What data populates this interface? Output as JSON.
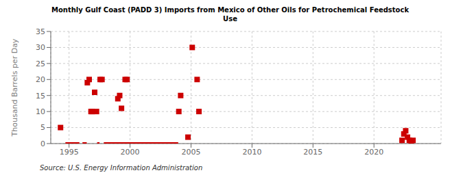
{
  "chart_data": {
    "type": "scatter",
    "title": "Monthly Gulf Coast (PADD 3) Imports from Mexico of Other Oils for Petrochemical Feedstock\nUse",
    "y_label": "Thousand Barrels per Day",
    "annotation": "Source: U.S. Energy Information Administration",
    "color": "#cc0000",
    "marker": "square",
    "grid": true,
    "xlim": [
      1993.5,
      2025.5
    ],
    "ylim": [
      0,
      35
    ],
    "xticks": [
      1995,
      2000,
      2005,
      2010,
      2015,
      2020
    ],
    "yticks": [
      0,
      5,
      10,
      15,
      20,
      25,
      30,
      35
    ],
    "x": [
      1994.3,
      1996.5,
      1996.65,
      1996.8,
      1996.9,
      1997.1,
      1997.25,
      1997.55,
      1997.7,
      1999.0,
      1999.15,
      1999.3,
      1999.6,
      1999.75,
      2004.0,
      2004.15,
      2004.75,
      2005.1,
      2005.5,
      2005.65,
      2022.3,
      2022.45,
      2022.6,
      2022.75,
      2022.9,
      2023.05,
      2023.2
    ],
    "values": [
      5,
      19,
      20,
      10,
      10,
      16,
      10,
      20,
      20,
      14,
      15,
      11,
      20,
      20,
      10,
      15,
      2,
      30,
      20,
      10,
      1,
      3,
      4,
      2,
      1,
      0.5,
      1
    ],
    "segments": [
      {
        "x": [
          1994.7,
          1995.85
        ],
        "values": [
          0,
          0
        ]
      },
      {
        "x": [
          1996.1,
          1996.45
        ],
        "values": [
          0,
          0
        ]
      },
      {
        "x": [
          1997.3,
          1997.5
        ],
        "values": [
          0,
          0
        ]
      },
      {
        "x": [
          1997.85,
          2003.95
        ],
        "values": [
          0,
          0
        ]
      }
    ]
  }
}
